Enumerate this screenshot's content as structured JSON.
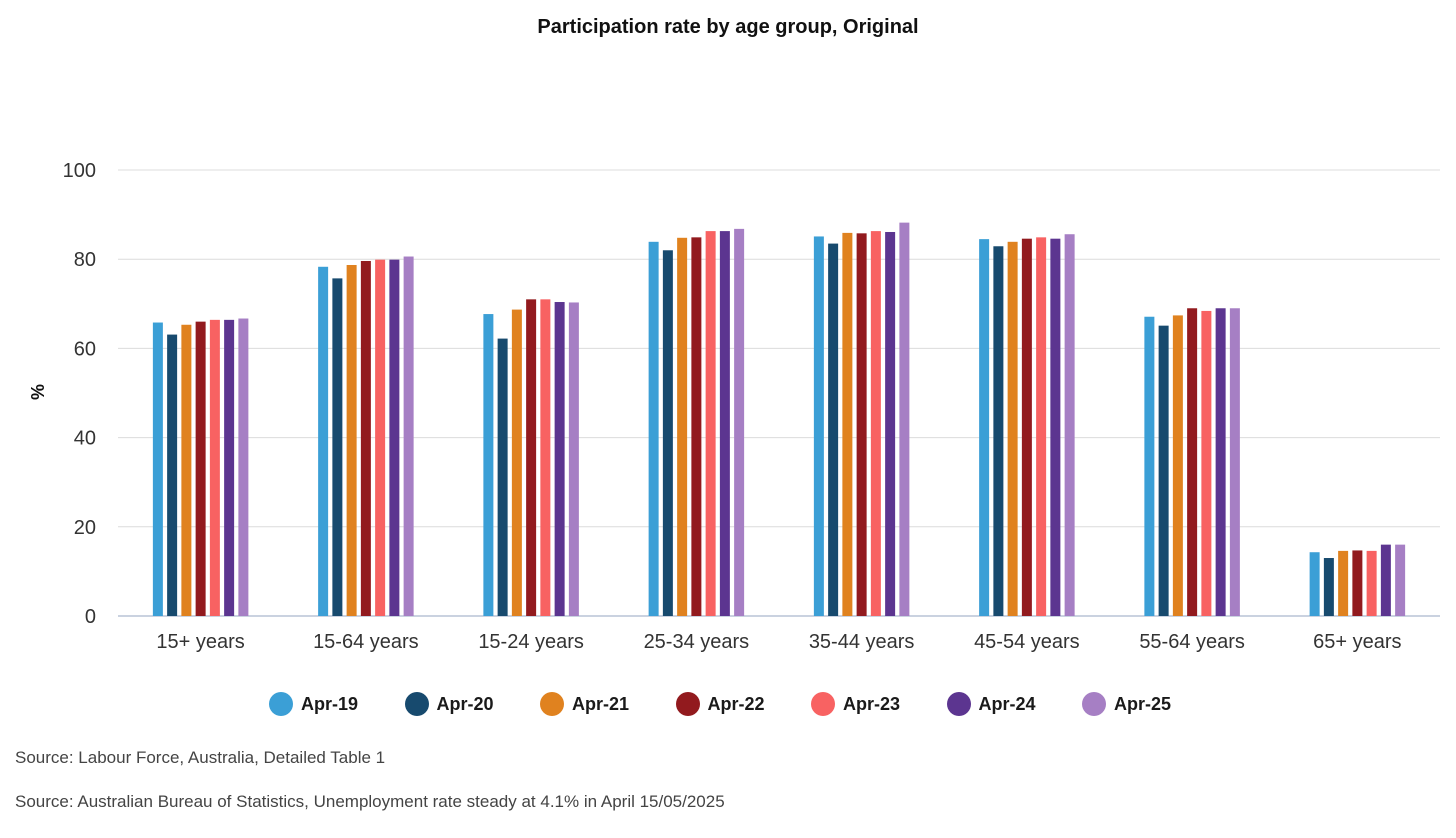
{
  "chart_data": {
    "type": "bar",
    "title": "Participation rate by age group, Original",
    "ylabel": "%",
    "xlabel": "",
    "ylim": [
      0,
      100
    ],
    "yticks": [
      0,
      20,
      40,
      60,
      80,
      100
    ],
    "grid": true,
    "legend_position": "bottom",
    "categories": [
      "15+ years",
      "15-64 years",
      "15-24 years",
      "25-34 years",
      "35-44 years",
      "45-54 years",
      "55-64 years",
      "65+ years"
    ],
    "series": [
      {
        "name": "Apr-19",
        "color": "#3B9FD6",
        "values": [
          65.8,
          78.3,
          67.7,
          83.9,
          85.1,
          84.5,
          67.1,
          14.3
        ]
      },
      {
        "name": "Apr-20",
        "color": "#174A6E",
        "values": [
          63.1,
          75.7,
          62.2,
          82.0,
          83.5,
          82.9,
          65.1,
          13.0
        ]
      },
      {
        "name": "Apr-21",
        "color": "#E0821F",
        "values": [
          65.3,
          78.7,
          68.7,
          84.8,
          85.9,
          83.9,
          67.4,
          14.6
        ]
      },
      {
        "name": "Apr-22",
        "color": "#921A1E",
        "values": [
          66.0,
          79.6,
          71.0,
          84.9,
          85.8,
          84.6,
          69.0,
          14.7
        ]
      },
      {
        "name": "Apr-23",
        "color": "#F86262",
        "values": [
          66.4,
          79.9,
          71.0,
          86.3,
          86.3,
          84.9,
          68.4,
          14.6
        ]
      },
      {
        "name": "Apr-24",
        "color": "#5C3590",
        "values": [
          66.4,
          79.9,
          70.4,
          86.3,
          86.1,
          84.6,
          69.0,
          16.0
        ]
      },
      {
        "name": "Apr-25",
        "color": "#A67FC4",
        "values": [
          66.7,
          80.6,
          70.3,
          86.8,
          88.2,
          85.6,
          69.0,
          16.0
        ]
      }
    ]
  },
  "sources": [
    "Source: Labour Force, Australia, Detailed Table 1",
    "Source: Australian Bureau of Statistics, Unemployment rate steady at 4.1% in April 15/05/2025"
  ]
}
